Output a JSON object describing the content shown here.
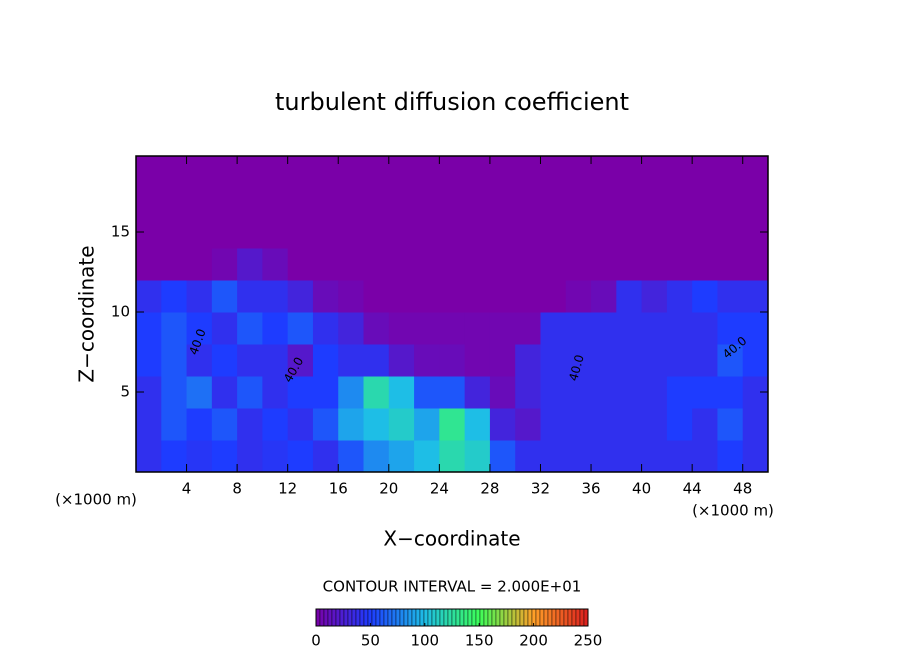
{
  "chart_data": {
    "type": "contour",
    "title": "turbulent diffusion coefficient",
    "x_label": "X−coordinate",
    "y_label": "Z−coordinate",
    "x_unit_label": "(×1000 m)",
    "y_unit_label": "(×1000 m)",
    "contour_interval_label": "CONTOUR INTERVAL = 2.000E+01",
    "contour_labels": [
      "40.0",
      "40.0",
      "40.0",
      "40.0"
    ],
    "xlim": [
      0,
      50
    ],
    "ylim": [
      0,
      19.75
    ],
    "xticks": [
      4,
      8,
      12,
      16,
      20,
      24,
      28,
      32,
      36,
      40,
      44,
      48
    ],
    "yticks": [
      5,
      10,
      15
    ],
    "x": [
      1,
      3,
      5,
      7,
      9,
      11,
      13,
      15,
      17,
      19,
      21,
      23,
      25,
      27,
      29,
      31,
      33,
      35,
      37,
      39,
      41,
      43,
      45,
      47,
      49
    ],
    "z": [
      1,
      3,
      5,
      7,
      9,
      11,
      13,
      15,
      17,
      19
    ],
    "values": [
      [
        40,
        50,
        45,
        50,
        40,
        45,
        50,
        40,
        60,
        80,
        90,
        100,
        120,
        110,
        60,
        40,
        40,
        40,
        40,
        40,
        40,
        40,
        40,
        50,
        40
      ],
      [
        40,
        60,
        50,
        60,
        40,
        50,
        40,
        60,
        90,
        100,
        110,
        90,
        130,
        100,
        30,
        20,
        40,
        40,
        40,
        40,
        40,
        50,
        40,
        60,
        40
      ],
      [
        40,
        60,
        70,
        40,
        60,
        40,
        50,
        50,
        80,
        120,
        100,
        60,
        60,
        30,
        10,
        30,
        40,
        40,
        40,
        40,
        40,
        50,
        50,
        50,
        40
      ],
      [
        50,
        60,
        40,
        50,
        40,
        40,
        20,
        50,
        40,
        40,
        20,
        10,
        10,
        5,
        5,
        30,
        40,
        40,
        40,
        40,
        40,
        40,
        40,
        60,
        50
      ],
      [
        50,
        60,
        50,
        40,
        60,
        50,
        60,
        40,
        30,
        10,
        5,
        5,
        5,
        5,
        5,
        5,
        40,
        40,
        40,
        40,
        40,
        40,
        40,
        50,
        50
      ],
      [
        40,
        50,
        40,
        60,
        40,
        40,
        30,
        10,
        5,
        0,
        0,
        0,
        0,
        0,
        0,
        0,
        0,
        5,
        10,
        40,
        30,
        40,
        50,
        40,
        40
      ],
      [
        0,
        0,
        0,
        5,
        20,
        10,
        0,
        0,
        0,
        0,
        0,
        0,
        0,
        0,
        0,
        0,
        0,
        0,
        0,
        0,
        0,
        0,
        0,
        0,
        0
      ],
      [
        0,
        0,
        0,
        0,
        0,
        0,
        0,
        0,
        0,
        0,
        0,
        0,
        0,
        0,
        0,
        0,
        0,
        0,
        0,
        0,
        0,
        0,
        0,
        0,
        0
      ],
      [
        0,
        0,
        0,
        0,
        0,
        0,
        0,
        0,
        0,
        0,
        0,
        0,
        0,
        0,
        0,
        0,
        0,
        0,
        0,
        0,
        0,
        0,
        0,
        0,
        0
      ],
      [
        0,
        0,
        0,
        0,
        0,
        0,
        0,
        0,
        0,
        0,
        0,
        0,
        0,
        0,
        0,
        0,
        0,
        0,
        0,
        0,
        0,
        0,
        0,
        0,
        0
      ]
    ],
    "clim": [
      0,
      250
    ],
    "cticks": [
      0,
      50,
      100,
      150,
      200,
      250
    ]
  }
}
